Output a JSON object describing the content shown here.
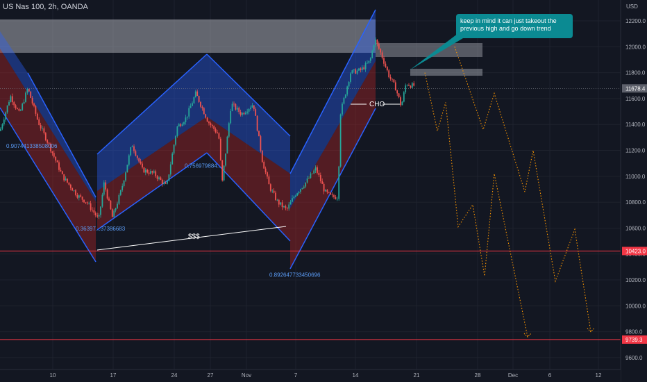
{
  "header": {
    "symbol": "US Nas 100, 2h, OANDA"
  },
  "annotation": {
    "callout_text": "keep in mind it can just takeout the previous high and go down trend"
  },
  "colors": {
    "background": "#131722",
    "up": "#26a69a",
    "down": "#ef5350",
    "channel_blue": "#2962ff",
    "channel_red": "#c62828",
    "projection": "#ff9800",
    "level_line": "#f23645",
    "zone": "#787b86",
    "callout": "#0b8a92"
  },
  "chart_data": {
    "type": "candlestick",
    "currency_label": "USD",
    "x_ticks": [
      "10",
      "17",
      "24",
      "27",
      "Nov",
      "7",
      "14",
      "21",
      "28",
      "Dec",
      "6",
      "12"
    ],
    "y_ticks": [
      12200,
      12000,
      11800,
      11600,
      11400,
      11200,
      11000,
      10800,
      10600,
      10400,
      10200,
      10000,
      9800,
      9600
    ],
    "ylim": [
      9530,
      12320
    ],
    "last_price": 11678.4,
    "price_labels": [
      {
        "label": "11678.4",
        "value": 11678.4,
        "style": "current"
      },
      {
        "label": "10423.0",
        "value": 10423.0,
        "style": "level"
      },
      {
        "label": "9739.3",
        "value": 9739.3,
        "style": "level"
      }
    ],
    "horizontal_levels": [
      10423.0,
      9739.3
    ],
    "fib_labels": [
      {
        "text": "0.907441338508006",
        "price": 11220
      },
      {
        "text": "0.36397...37386683",
        "price": 10580
      },
      {
        "text": "0.756979884...",
        "price": 11065
      },
      {
        "text": "0.892647733450696",
        "price": 10225
      }
    ],
    "text_annotations": [
      {
        "text": "$$$",
        "price": 10530
      },
      {
        "text": "CHO",
        "price": 11550
      }
    ],
    "supply_zones": [
      {
        "from": 12220,
        "to": 11960
      },
      {
        "from": 12020,
        "to": 11920
      },
      {
        "from": 11820,
        "to": 11770
      }
    ],
    "candle_path": [
      [
        0,
        11350
      ],
      [
        15,
        11620
      ],
      [
        28,
        11480
      ],
      [
        40,
        11680
      ],
      [
        55,
        11420
      ],
      [
        70,
        11250
      ],
      [
        90,
        11000
      ],
      [
        112,
        10850
      ],
      [
        125,
        10800
      ],
      [
        138,
        10700
      ],
      [
        142,
        10660
      ],
      [
        150,
        10950
      ],
      [
        162,
        10680
      ],
      [
        175,
        10900
      ],
      [
        190,
        11250
      ],
      [
        205,
        11050
      ],
      [
        222,
        11020
      ],
      [
        240,
        10920
      ],
      [
        255,
        11380
      ],
      [
        268,
        11450
      ],
      [
        282,
        11640
      ],
      [
        300,
        11420
      ],
      [
        315,
        11320
      ],
      [
        320,
        10950
      ],
      [
        333,
        11560
      ],
      [
        348,
        11480
      ],
      [
        365,
        11560
      ],
      [
        378,
        11120
      ],
      [
        388,
        10920
      ],
      [
        400,
        10800
      ],
      [
        413,
        10740
      ],
      [
        425,
        10860
      ],
      [
        440,
        10950
      ],
      [
        455,
        11060
      ],
      [
        468,
        10880
      ],
      [
        478,
        10840
      ],
      [
        487,
        10840
      ],
      [
        490,
        11480
      ],
      [
        505,
        11800
      ],
      [
        520,
        11820
      ],
      [
        533,
        11890
      ],
      [
        540,
        12060
      ],
      [
        550,
        11930
      ],
      [
        560,
        11780
      ],
      [
        570,
        11680
      ],
      [
        578,
        11540
      ],
      [
        585,
        11720
      ],
      [
        592,
        11700
      ],
      [
        598,
        11700
      ]
    ],
    "projection_path": [
      [
        612,
        11800
      ],
      [
        630,
        11350
      ],
      [
        642,
        11570
      ],
      [
        660,
        10610
      ],
      [
        681,
        10780
      ],
      [
        698,
        10230
      ],
      [
        712,
        11020
      ],
      [
        760,
        9760
      ],
      [
        655,
        12000
      ],
      [
        696,
        11360
      ],
      [
        712,
        11640
      ],
      [
        756,
        10880
      ],
      [
        768,
        11200
      ],
      [
        800,
        10190
      ],
      [
        828,
        10590
      ],
      [
        851,
        9800
      ]
    ]
  }
}
